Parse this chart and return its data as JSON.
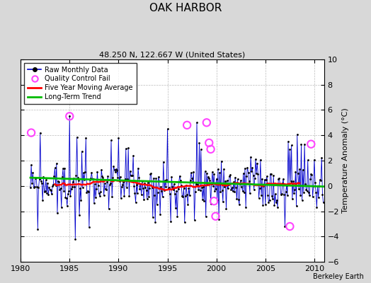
{
  "title": "OAK HARBOR",
  "subtitle": "48.250 N, 122.667 W (United States)",
  "ylabel": "Temperature Anomaly (°C)",
  "watermark": "Berkeley Earth",
  "xlim": [
    1980,
    2011
  ],
  "ylim": [
    -6,
    10
  ],
  "yticks": [
    -6,
    -4,
    -2,
    0,
    2,
    4,
    6,
    8,
    10
  ],
  "xticks": [
    1980,
    1985,
    1990,
    1995,
    2000,
    2005,
    2010
  ],
  "bg_color": "#d8d8d8",
  "plot_bg_color": "#ffffff",
  "raw_color": "#0000cc",
  "qc_color": "#ff44ff",
  "moving_avg_color": "#ff0000",
  "trend_color": "#00bb00",
  "title_fontsize": 11,
  "subtitle_fontsize": 8,
  "tick_fontsize": 8,
  "ylabel_fontsize": 8,
  "legend_fontsize": 7,
  "watermark_fontsize": 7
}
